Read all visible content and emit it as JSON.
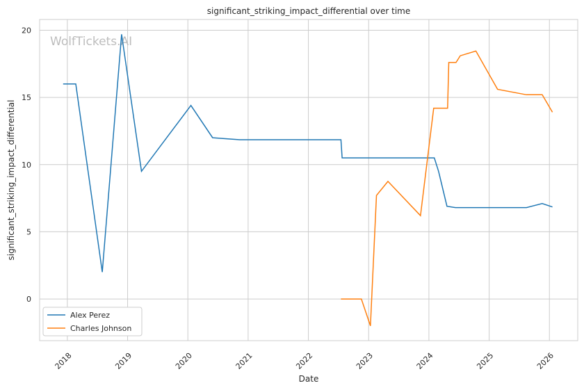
{
  "chart_data": {
    "type": "line",
    "title": "significant_striking_impact_differential over time",
    "xlabel": "Date",
    "ylabel": "significant_striking_impact_differential",
    "xlim": [
      2017.54,
      2026.47
    ],
    "ylim": [
      -3.1,
      20.8
    ],
    "x_ticks": [
      2018,
      2019,
      2020,
      2021,
      2022,
      2023,
      2024,
      2025,
      2026
    ],
    "x_tick_labels": [
      "2018",
      "2019",
      "2020",
      "2021",
      "2022",
      "2023",
      "2024",
      "2025",
      "2026"
    ],
    "y_ticks": [
      0,
      5,
      10,
      15,
      20
    ],
    "y_tick_labels": [
      "0",
      "5",
      "10",
      "15",
      "20"
    ],
    "grid": true,
    "legend_position": "bottom-left",
    "watermark": "WolfTickets.AI",
    "series": [
      {
        "name": "Alex Perez",
        "color": "#1f77b4",
        "x": [
          2017.93,
          2018.14,
          2018.58,
          2018.9,
          2019.23,
          2020.05,
          2020.41,
          2020.86,
          2022.54,
          2022.56,
          2024.09,
          2024.16,
          2024.3,
          2024.44,
          2025.62,
          2025.88,
          2026.05
        ],
        "y": [
          16,
          16,
          2,
          19.7,
          9.5,
          14.4,
          12,
          11.85,
          11.85,
          10.5,
          10.5,
          9.5,
          6.9,
          6.8,
          6.8,
          7.1,
          6.85
        ]
      },
      {
        "name": "Charles Johnson",
        "color": "#ff7f0e",
        "x": [
          2022.54,
          2022.88,
          2023.03,
          2023.13,
          2023.32,
          2023.86,
          2024.08,
          2024.31,
          2024.33,
          2024.45,
          2024.52,
          2024.78,
          2025.14,
          2025.62,
          2025.88,
          2026.05
        ],
        "y": [
          0,
          0,
          -2,
          7.7,
          8.75,
          6.2,
          14.2,
          14.2,
          17.6,
          17.6,
          18.1,
          18.45,
          15.6,
          15.2,
          15.2,
          13.9
        ]
      }
    ]
  }
}
